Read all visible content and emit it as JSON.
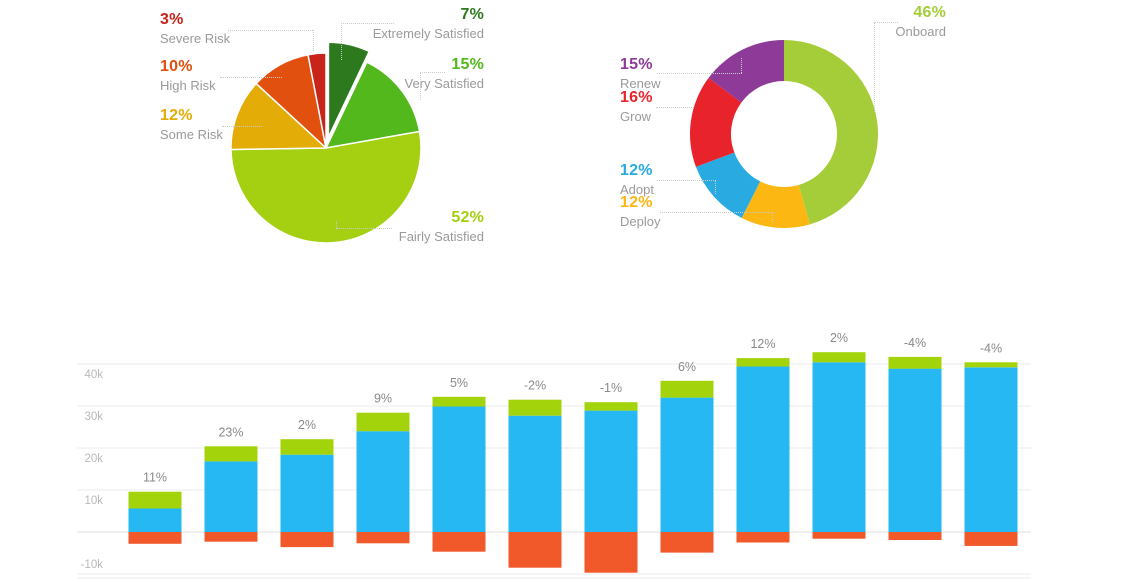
{
  "chart_data": [
    {
      "id": "satisfaction-pie",
      "type": "pie",
      "legend": "callout-labels",
      "slices": [
        {
          "label": "Extremely Satisfied",
          "pct": "7%",
          "value": 7,
          "color": "#2d7a1e",
          "exploded": true
        },
        {
          "label": "Very Satisfied",
          "pct": "15%",
          "value": 15,
          "color": "#52b81c"
        },
        {
          "label": "Fairly Satisfied",
          "pct": "52%",
          "value": 52,
          "color": "#a4d011"
        },
        {
          "label": "Some Risk",
          "pct": "12%",
          "value": 12,
          "color": "#e3ac06"
        },
        {
          "label": "High Risk",
          "pct": "10%",
          "value": 10,
          "color": "#e1500f"
        },
        {
          "label": "Severe Risk",
          "pct": "3%",
          "value": 3,
          "color": "#c9241a"
        }
      ]
    },
    {
      "id": "lifecycle-donut",
      "type": "donut",
      "legend": "callout-labels",
      "slices": [
        {
          "label": "Onboard",
          "pct": "46%",
          "value": 46,
          "color": "#a5cd39"
        },
        {
          "label": "Deploy",
          "pct": "12%",
          "value": 12,
          "color": "#fcb713"
        },
        {
          "label": "Adopt",
          "pct": "12%",
          "value": 12,
          "color": "#29aae1"
        },
        {
          "label": "Grow",
          "pct": "16%",
          "value": 16,
          "color": "#e9232b"
        },
        {
          "label": "Renew",
          "pct": "15%",
          "value": 15,
          "color": "#8e3a98"
        }
      ]
    },
    {
      "id": "monthly-stacked-bars",
      "type": "bar",
      "grid": true,
      "ylim": [
        -12000,
        48000
      ],
      "y_ticks": [
        {
          "label": "40k",
          "value": 40000
        },
        {
          "label": "30k",
          "value": 30000
        },
        {
          "label": "20k",
          "value": 20000
        },
        {
          "label": "10k",
          "value": 10000
        },
        {
          "label": "",
          "value": 0
        },
        {
          "label": "-10k",
          "value": -10000
        }
      ],
      "bar_labels": [
        "11%",
        "23%",
        "2%",
        "9%",
        "5%",
        "-2%",
        "-1%",
        "6%",
        "12%",
        "2%",
        "-4%",
        "-4%"
      ],
      "series": [
        {
          "name": "blue",
          "color": "#25b8f3",
          "values": [
            5600,
            16800,
            18400,
            24000,
            29900,
            27700,
            28900,
            32000,
            39400,
            40400,
            38900,
            39200
          ]
        },
        {
          "name": "green",
          "color": "#a3d30b",
          "values": [
            4000,
            3600,
            3700,
            4400,
            2300,
            3800,
            2000,
            4000,
            2000,
            2400,
            2800,
            1200
          ]
        },
        {
          "name": "orange",
          "color": "#f1582a",
          "values": [
            -2800,
            -2300,
            -3600,
            -2700,
            -4700,
            -8500,
            -9700,
            -4900,
            -2500,
            -1600,
            -1900,
            -3300
          ]
        }
      ]
    }
  ],
  "text_colors": {
    "label_gray": "#9a9a9a",
    "bar_label_gray": "#8a8a8a",
    "axis_gray": "#b9b9b9"
  }
}
